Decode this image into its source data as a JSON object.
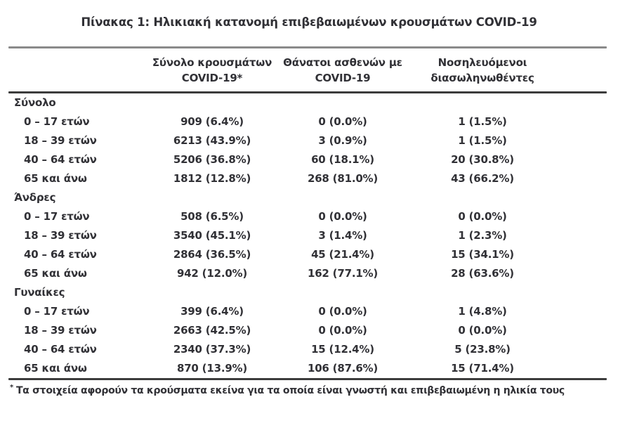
{
  "title": "Πίνακας 1: Ηλικιακή κατανομή επιβεβαιωμένων κρουσμάτων COVID-19",
  "columns": [
    {
      "line1": "Σύνολο κρουσμάτων",
      "line2": "COVID-19*"
    },
    {
      "line1": "Θάνατοι ασθενών με",
      "line2": "COVID-19"
    },
    {
      "line1": "Νοσηλευόμενοι",
      "line2": "διασωληνωθέντες"
    }
  ],
  "sections": [
    {
      "label": "Σύνολο",
      "rows": [
        {
          "label": "0 – 17 ετών",
          "values": [
            "909 (6.4%)",
            "0 (0.0%)",
            "1 (1.5%)"
          ]
        },
        {
          "label": "18 – 39 ετών",
          "values": [
            "6213 (43.9%)",
            "3 (0.9%)",
            "1 (1.5%)"
          ]
        },
        {
          "label": "40 – 64 ετών",
          "values": [
            "5206 (36.8%)",
            "60 (18.1%)",
            "20 (30.8%)"
          ]
        },
        {
          "label": "65 και άνω",
          "values": [
            "1812 (12.8%)",
            "268 (81.0%)",
            "43 (66.2%)"
          ]
        }
      ]
    },
    {
      "label": "Άνδρες",
      "rows": [
        {
          "label": "0 – 17 ετών",
          "values": [
            "508 (6.5%)",
            "0 (0.0%)",
            "0 (0.0%)"
          ]
        },
        {
          "label": "18 – 39 ετών",
          "values": [
            "3540 (45.1%)",
            "3 (1.4%)",
            "1 (2.3%)"
          ]
        },
        {
          "label": "40 – 64 ετών",
          "values": [
            "2864 (36.5%)",
            "45 (21.4%)",
            "15 (34.1%)"
          ]
        },
        {
          "label": "65 και άνω",
          "values": [
            "942 (12.0%)",
            "162 (77.1%)",
            "28 (63.6%)"
          ]
        }
      ]
    },
    {
      "label": "Γυναίκες",
      "rows": [
        {
          "label": "0 – 17 ετών",
          "values": [
            "399 (6.4%)",
            "0 (0.0%)",
            "1 (4.8%)"
          ]
        },
        {
          "label": "18 – 39 ετών",
          "values": [
            "2663 (42.5%)",
            "0 (0.0%)",
            "0 (0.0%)"
          ]
        },
        {
          "label": "40 – 64 ετών",
          "values": [
            "2340 (37.3%)",
            "15 (12.4%)",
            "5 (23.8%)"
          ]
        },
        {
          "label": "65 και άνω",
          "values": [
            "870 (13.9%)",
            "106 (87.6%)",
            "15 (71.4%)"
          ]
        }
      ]
    }
  ],
  "footnote": {
    "marker": "*",
    "text": "Τα στοιχεία αφορούν τα κρούσματα εκείνα για τα οποία είναι γνωστή και επιβεβαιωμένη η ηλικία τους"
  },
  "colors": {
    "text": "#313136",
    "rule_light": "#8a8a8a",
    "rule_dark": "#3c3c3c",
    "background": "#ffffff"
  }
}
